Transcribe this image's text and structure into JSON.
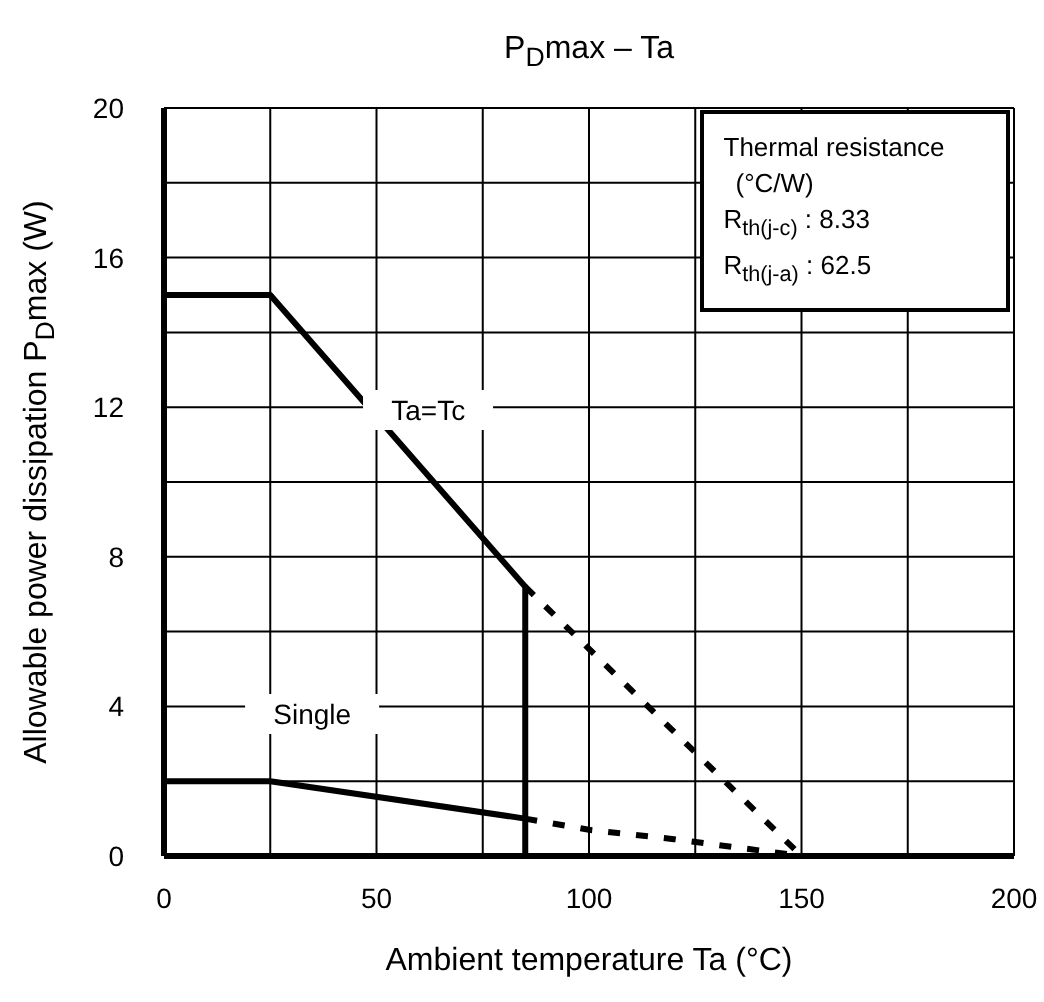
{
  "chart_data": {
    "type": "line",
    "title": "P$_{D}$max – Ta",
    "xlabel": "Ambient temperature Ta (°C)",
    "ylabel": "Allowable power dissipation P$_{D}$max (W)",
    "annotations": [
      "Thermal resistance",
      "(°C/W)",
      "R$_{th(j-c)}$ : 8.33",
      "R$_{th(j-a)}$ : 62.5"
    ],
    "xlim": [
      0,
      200
    ],
    "ylim": [
      0,
      20
    ],
    "xticks": [
      0,
      {
        "value": 25,
        "label": null
      },
      50,
      {
        "value": 75,
        "label": null
      },
      100,
      {
        "value": 125,
        "label": null
      },
      150,
      {
        "value": 175,
        "label": null
      },
      200
    ],
    "yticks": [
      0,
      {
        "value": 2,
        "label": null
      },
      4,
      {
        "value": 6,
        "label": null
      },
      8,
      {
        "value": 10,
        "label": null
      },
      12,
      {
        "value": 14,
        "label": null
      },
      16,
      {
        "value": 18,
        "label": null
      },
      20
    ],
    "grid": true,
    "legend": false,
    "marker": "none",
    "line_style": "solid",
    "series": [
      {
        "name": "Ta=Tc",
        "color": "#000000",
        "x": [
          0,
          25,
          85,
          85
        ],
        "values": [
          15,
          15,
          7.2,
          0
        ]
      },
      {
        "color": "#000000",
        "x": [
          85,
          150
        ],
        "values": [
          7.2,
          0
        ],
        "line_style": "dashed"
      },
      {
        "name": "Single",
        "color": "#000000",
        "x": [
          0,
          25,
          85
        ],
        "values": [
          2,
          2,
          1
        ]
      },
      {
        "color": "#000000",
        "x": [
          85,
          100,
          120,
          140,
          150
        ],
        "values": [
          1,
          0.7,
          0.45,
          0.15,
          0
        ],
        "line_style": "dashed"
      }
    ]
  }
}
